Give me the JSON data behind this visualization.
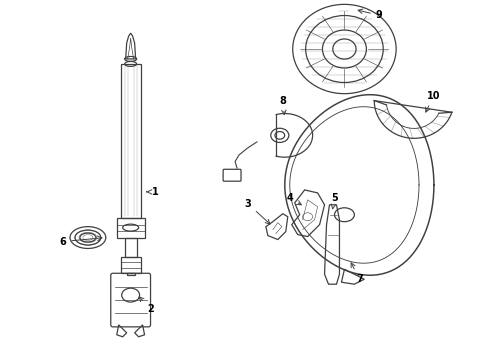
{
  "bg_color": "#ffffff",
  "line_color": "#404040",
  "label_color": "#000000",
  "figsize": [
    4.9,
    3.6
  ],
  "dpi": 100
}
